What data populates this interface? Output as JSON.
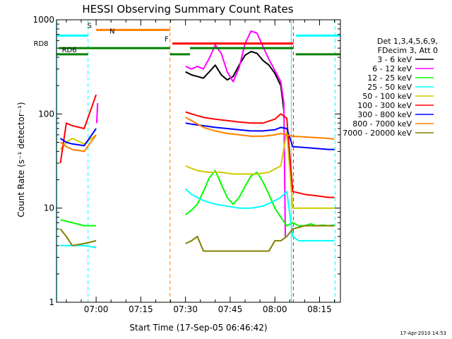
{
  "chart_data": {
    "type": "line",
    "title": "HESSI Observing Summary Count Rates",
    "xlabel": "Start Time (17-Sep-05 06:46:42)",
    "ylabel": "Count Rate (s⁻¹ detector⁻¹)",
    "x_ticks": [
      "07:00",
      "07:15",
      "07:30",
      "07:45",
      "08:00",
      "08:15"
    ],
    "x_tick_minutes": [
      420,
      435,
      450,
      465,
      480,
      495
    ],
    "y_scale": "log",
    "ylim": [
      1,
      1000
    ],
    "y_ticks": [
      "1",
      "10",
      "100",
      "1000"
    ],
    "xlim_minutes": [
      406.7,
      502
    ],
    "legend": {
      "header": [
        "Det 1,3,4,5,6,9,",
        "FDecim 3, Att 0"
      ],
      "placement": "right"
    },
    "series": [
      {
        "name": "3 - 6 keV",
        "color": "#000000",
        "gap": true,
        "x": [
          450,
          452,
          454,
          456,
          458,
          460,
          462,
          464,
          466,
          468,
          470,
          472,
          474,
          476,
          478,
          480,
          482,
          483
        ],
        "y": [
          280,
          260,
          250,
          240,
          280,
          330,
          260,
          230,
          250,
          330,
          420,
          460,
          440,
          370,
          330,
          270,
          200,
          110
        ]
      },
      {
        "name": "6 - 12 keV",
        "color": "#ff00ff",
        "gap": true,
        "x": [
          420.2,
          420.5,
          450,
          452,
          454,
          456,
          458,
          460,
          462,
          464,
          466,
          468,
          470,
          472,
          474,
          476,
          478,
          480,
          482,
          483,
          483.5
        ],
        "y": [
          80,
          130,
          320,
          300,
          320,
          300,
          390,
          540,
          440,
          280,
          220,
          310,
          560,
          760,
          720,
          520,
          380,
          290,
          220,
          130,
          5
        ]
      },
      {
        "name": "12 - 25 keV",
        "color": "#00ff00",
        "gap": true,
        "x": [
          408,
          412,
          416,
          420,
          450,
          452,
          454,
          456,
          458,
          460,
          462,
          464,
          466,
          468,
          470,
          472,
          474,
          476,
          478,
          480,
          482,
          484,
          486,
          488,
          490,
          492,
          494,
          496,
          498,
          500
        ],
        "y": [
          7.5,
          7,
          6.5,
          6.5,
          8.5,
          9.5,
          11,
          15,
          21,
          25,
          18,
          13,
          11,
          13,
          17,
          22,
          24,
          19,
          14,
          10,
          8,
          6.5,
          7,
          6.5,
          6.5,
          6.8,
          6.5,
          6.6,
          6.5,
          6.6
        ]
      },
      {
        "name": "25 - 50 keV",
        "color": "#00ffff",
        "gap": true,
        "x": [
          408,
          412,
          416,
          420,
          450,
          452,
          456,
          460,
          464,
          468,
          472,
          476,
          480,
          482,
          484,
          486,
          488,
          490,
          494,
          498,
          500
        ],
        "y": [
          4,
          4,
          4,
          3.8,
          16,
          14,
          12,
          11,
          10.5,
          10,
          10,
          10.5,
          12,
          13,
          15,
          5,
          4.5,
          4.5,
          4.5,
          4.5,
          4.5
        ]
      },
      {
        "name": "50 - 100 keV",
        "color": "#cccc00",
        "gap": true,
        "x": [
          408,
          410,
          412,
          416,
          420,
          450,
          454,
          458,
          462,
          466,
          470,
          474,
          478,
          480,
          482,
          484,
          486,
          490,
          494,
          498,
          500
        ],
        "y": [
          42,
          50,
          55,
          48,
          60,
          28,
          25,
          24,
          24,
          23,
          23,
          23,
          24,
          26,
          28,
          65,
          10,
          10,
          10,
          10,
          10
        ]
      },
      {
        "name": "100 - 300 keV",
        "color": "#ff0000",
        "gap": true,
        "x": [
          408,
          410,
          412,
          416,
          420,
          450,
          452,
          456,
          460,
          464,
          468,
          472,
          476,
          480,
          482,
          484,
          486,
          490,
          494,
          498,
          500
        ],
        "y": [
          30,
          80,
          75,
          70,
          160,
          105,
          100,
          92,
          88,
          85,
          82,
          80,
          80,
          88,
          100,
          90,
          15,
          14,
          13.5,
          13,
          13
        ]
      },
      {
        "name": "300 - 800 keV",
        "color": "#0000ff",
        "gap": true,
        "x": [
          408,
          410,
          412,
          416,
          420,
          450,
          452,
          456,
          460,
          464,
          468,
          472,
          476,
          480,
          482,
          484,
          486,
          490,
          494,
          498,
          500
        ],
        "y": [
          55,
          50,
          48,
          46,
          70,
          80,
          78,
          75,
          72,
          70,
          68,
          66,
          66,
          68,
          72,
          70,
          45,
          44,
          43,
          42,
          42
        ]
      },
      {
        "name": "800 - 7000 keV",
        "color": "#ff8000",
        "gap": true,
        "x": [
          408,
          410,
          412,
          416,
          420,
          450,
          452,
          456,
          460,
          464,
          468,
          472,
          476,
          480,
          482,
          484,
          486,
          490,
          494,
          498,
          500
        ],
        "y": [
          50,
          45,
          42,
          40,
          60,
          92,
          85,
          72,
          66,
          62,
          60,
          58,
          58,
          60,
          62,
          60,
          58,
          57,
          56,
          55,
          54
        ]
      },
      {
        "name": "7000 - 20000 keV",
        "color": "#808000",
        "gap": true,
        "x": [
          408,
          410,
          412,
          416,
          420,
          450,
          452,
          454,
          456,
          458,
          460,
          462,
          466,
          470,
          474,
          478,
          480,
          482,
          484,
          486,
          490,
          494,
          498,
          500
        ],
        "y": [
          6,
          5,
          4,
          4.2,
          4.5,
          4.2,
          4.5,
          5,
          3.5,
          3.5,
          3.5,
          3.5,
          3.5,
          3.5,
          3.5,
          3.5,
          4.5,
          4.5,
          5,
          6,
          6.5,
          6.5,
          6.5,
          6.5
        ]
      }
    ],
    "state_bars": [
      {
        "label": "S",
        "color": "#ff8000",
        "x": [
          420,
          444.8
        ],
        "y": 780,
        "label_x": 417
      },
      {
        "label": "N",
        "color": "#00ffff",
        "x": [
          406.7,
          417.3
        ],
        "y": 680,
        "label_x": 424.5
      },
      {
        "label": "N",
        "color": "#00ffff",
        "x": [
          487,
          502
        ],
        "y": 680
      },
      {
        "label": "F",
        "color": "#ff0000",
        "x": [
          445.6,
          486.2
        ],
        "y": 560,
        "label_x": 443
      },
      {
        "label": "RD8",
        "color": "#008000",
        "x": [
          407.5,
          444.8
        ],
        "y": 500,
        "label_x": 399
      },
      {
        "label": "",
        "color": "#008000",
        "x": [
          451.5,
          486.2
        ],
        "y": 500
      },
      {
        "label": "RD6",
        "color": "#008000",
        "x": [
          406.7,
          417.3
        ],
        "y": 430,
        "label_x": 408.5
      },
      {
        "label": "",
        "color": "#008000",
        "x": [
          444.8,
          451.5
        ],
        "y": 430
      },
      {
        "label": "",
        "color": "#008000",
        "x": [
          487,
          502
        ],
        "y": 430
      }
    ],
    "vlines": [
      {
        "minute": 406.8,
        "color": "#00ffff",
        "style": "solid"
      },
      {
        "minute": 417.3,
        "color": "#00ffff",
        "style": "dashed"
      },
      {
        "minute": 444.8,
        "color": "#ff8000",
        "style": "dashed"
      },
      {
        "minute": 485.5,
        "color": "#00ffff",
        "style": "solid"
      },
      {
        "minute": 486.2,
        "color": "#ff0000",
        "style": "dashed"
      },
      {
        "minute": 500.2,
        "color": "#00ffff",
        "style": "dashed"
      }
    ]
  },
  "timestamp": "17-Apr-2010 14:53"
}
